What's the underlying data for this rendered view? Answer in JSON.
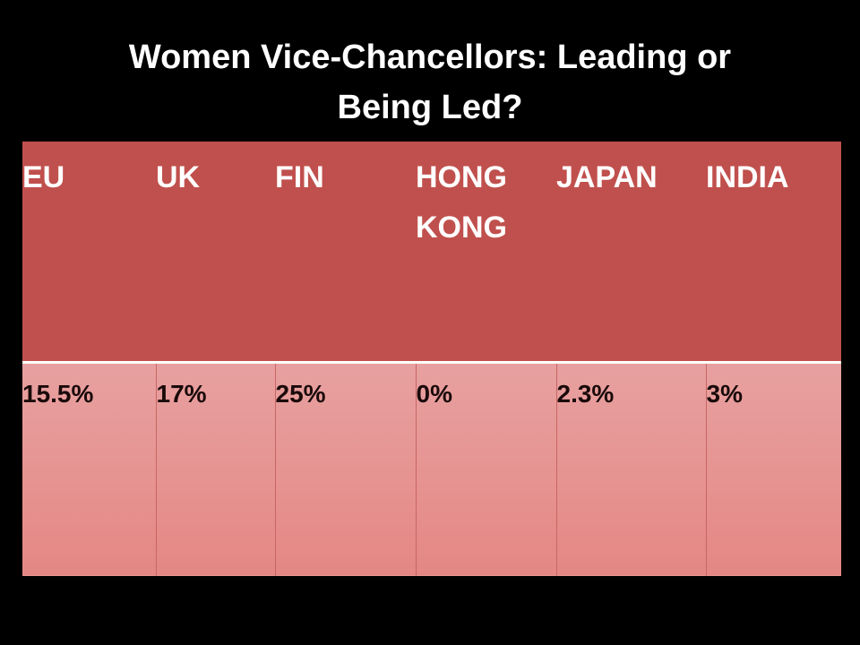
{
  "slide": {
    "title_line1": "Women Vice-Chancellors: Leading or",
    "title_line2": "Being Led?"
  },
  "table": {
    "headers": [
      {
        "line1": "EU",
        "line2": ""
      },
      {
        "line1": "UK",
        "line2": ""
      },
      {
        "line1": "FIN",
        "line2": ""
      },
      {
        "line1": "HONG",
        "line2": "KONG"
      },
      {
        "line1": "JAPAN",
        "line2": ""
      },
      {
        "line1": "INDIA",
        "line2": ""
      }
    ],
    "values": [
      "15.5%",
      "17%",
      "25%",
      "0%",
      "2.3%",
      "3%"
    ]
  },
  "colors": {
    "background": "#000000",
    "header_fill": "#c0504d",
    "value_fill_top": "#e7a1a0",
    "value_fill_bottom": "#e48784",
    "title_text": "#ffffff"
  }
}
